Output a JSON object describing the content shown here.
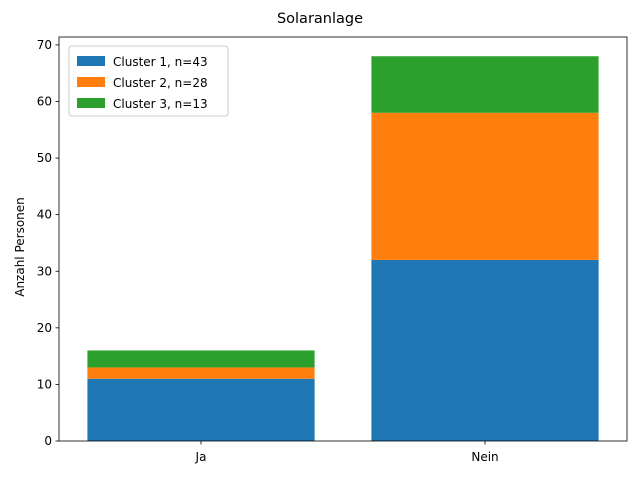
{
  "chart_data": {
    "type": "bar",
    "stacked": true,
    "title": "Solaranlage",
    "xlabel": "",
    "ylabel": "Anzahl Personen",
    "categories": [
      "Ja",
      "Nein"
    ],
    "series": [
      {
        "name": "Cluster 1, n=43",
        "values": [
          11,
          32
        ],
        "color": "#1f77b4"
      },
      {
        "name": "Cluster 2, n=28",
        "values": [
          2,
          26
        ],
        "color": "#ff7f0e"
      },
      {
        "name": "Cluster 3, n=13",
        "values": [
          3,
          10
        ],
        "color": "#2ca02c"
      }
    ],
    "ylim": [
      0,
      71.4
    ],
    "yticks": [
      0,
      10,
      20,
      30,
      40,
      50,
      60,
      70
    ],
    "legend_position": "upper left",
    "grid": false
  }
}
